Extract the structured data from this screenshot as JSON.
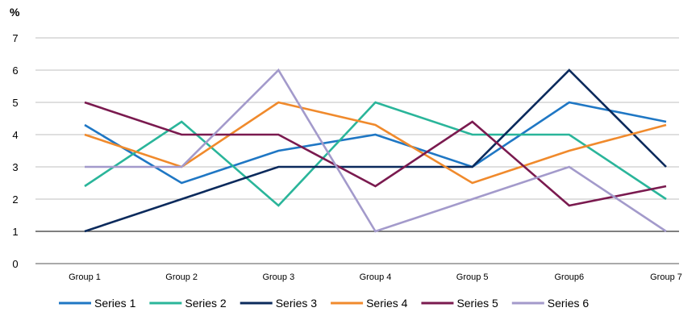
{
  "chart_data": {
    "type": "line",
    "title": "",
    "ylabel": "%",
    "xlabel": "",
    "categories": [
      "Group 1",
      "Group 2",
      "Group 3",
      "Group 4",
      "Group 5",
      "Group6",
      "Group 7"
    ],
    "ylim": [
      0,
      7
    ],
    "yticks": [
      0,
      1,
      2,
      3,
      4,
      5,
      6,
      7
    ],
    "grid": true,
    "legend": "bottom",
    "series": [
      {
        "name": "Series 1",
        "color": "#1f77c4",
        "values": [
          4.3,
          2.5,
          3.5,
          4.0,
          3.0,
          5.0,
          4.4
        ]
      },
      {
        "name": "Series 2",
        "color": "#2ab59a",
        "values": [
          2.4,
          4.4,
          1.8,
          5.0,
          4.0,
          4.0,
          2.0
        ]
      },
      {
        "name": "Series 3",
        "color": "#0b2a5c",
        "values": [
          1.0,
          2.0,
          3.0,
          3.0,
          3.0,
          6.0,
          3.0
        ]
      },
      {
        "name": "Series 4",
        "color": "#f08a2c",
        "values": [
          4.0,
          3.0,
          5.0,
          4.3,
          2.5,
          3.5,
          4.3
        ]
      },
      {
        "name": "Series 5",
        "color": "#7a1a4f",
        "values": [
          5.0,
          4.0,
          4.0,
          2.4,
          4.4,
          1.8,
          2.4
        ]
      },
      {
        "name": "Series 6",
        "color": "#a39acb",
        "values": [
          3.0,
          3.0,
          6.0,
          1.0,
          2.0,
          3.0,
          1.0
        ]
      }
    ]
  }
}
